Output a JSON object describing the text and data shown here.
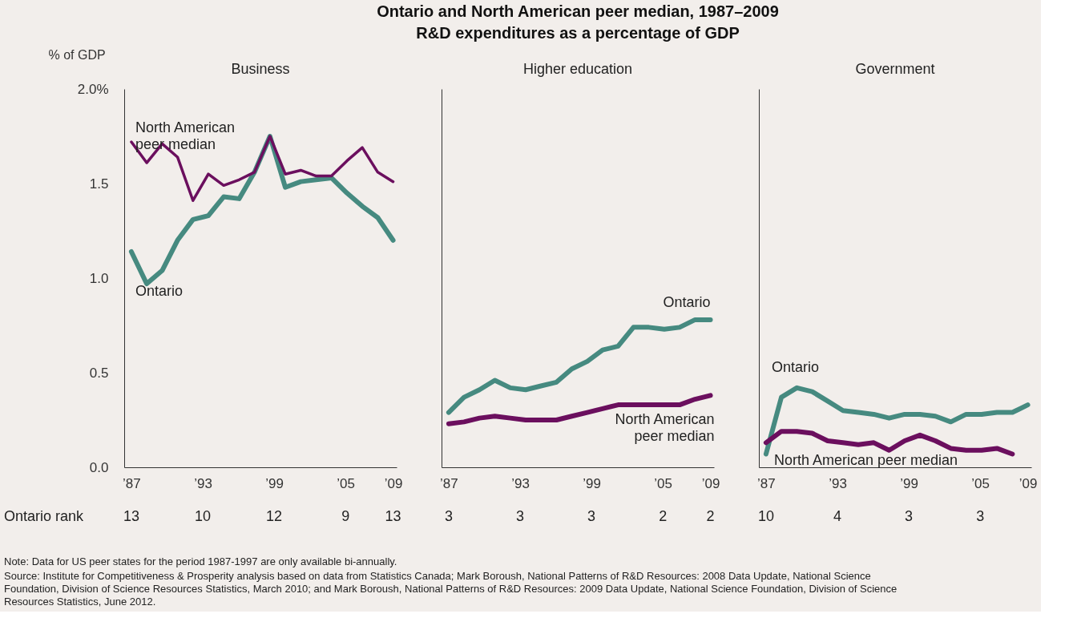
{
  "chart_data": [
    {
      "type": "line",
      "title": "Business",
      "ylabel": "% of GDP",
      "x": [
        1987,
        1988.29,
        1989.59,
        1990.88,
        1992.18,
        1993.47,
        1994.76,
        1996.06,
        1997.35,
        1998.65,
        1999.94,
        2001.24,
        2002.53,
        2003.82,
        2005.12,
        2006.41,
        2007.71,
        2009
      ],
      "series": [
        {
          "name": "North American peer median",
          "color": "#6b0f5e",
          "values": [
            1.72,
            1.61,
            1.71,
            1.64,
            1.41,
            1.55,
            1.49,
            1.52,
            1.56,
            1.75,
            1.55,
            1.57,
            1.54,
            1.54,
            1.62,
            1.69,
            1.56,
            1.51
          ]
        },
        {
          "name": "Ontario",
          "color": "#468a80",
          "values": [
            1.14,
            0.97,
            1.04,
            1.2,
            1.31,
            1.33,
            1.43,
            1.42,
            1.56,
            1.75,
            1.48,
            1.51,
            1.52,
            1.53,
            1.45,
            1.38,
            1.32,
            1.2
          ]
        }
      ],
      "xlim": [
        1986.4,
        2009.3
      ],
      "xticks": [
        {
          "value": 1987,
          "label": "’87"
        },
        {
          "value": 1993,
          "label": "’93"
        },
        {
          "value": 1999,
          "label": "’99"
        },
        {
          "value": 2005,
          "label": "’05"
        },
        {
          "value": 2009,
          "label": "’09"
        }
      ],
      "ylim": [
        0,
        2.0
      ],
      "yticks": [
        {
          "value": 0,
          "label": "0.0"
        },
        0.5,
        {
          "value": 1,
          "label": "1.0"
        },
        1.5,
        {
          "value": 2,
          "label": "2.0%"
        }
      ],
      "marker": "none",
      "line_style": "solid",
      "annotations": [
        "Ontario and North American peer median, 1987–2009",
        "R&D expenditures as a percentage of GDP",
        "Ontario rank",
        "Note: Data for US peer states for the period 1987-1997 are only available bi-annually.",
        "Source: Institute for Competitiveness & Prosperity analysis based on data from Statistics Canada; Mark Boroush, National Patterns of R&D Resources: 2008 Data Update, National Science Foundation, Division of Science Resources Statistics, March 2010; and Mark Boroush, National Patterns of R&D Resources: 2009 Data Update, National Science Foundation, Division of Science Resources Statistics, June 2012.",
        "13",
        "10",
        "12",
        "9",
        "13"
      ]
    },
    {
      "type": "line",
      "title": "Higher education",
      "x": [
        1987,
        1988.29,
        1989.59,
        1990.88,
        1992.18,
        1993.47,
        1994.76,
        1996.06,
        1997.35,
        1998.65,
        1999.94,
        2001.24,
        2002.53,
        2003.82,
        2005.12,
        2006.41,
        2007.71,
        2009
      ],
      "series": [
        {
          "name": "Ontario",
          "color": "#468a80",
          "values": [
            0.29,
            0.37,
            0.41,
            0.46,
            0.42,
            0.41,
            0.43,
            0.45,
            0.52,
            0.56,
            0.62,
            0.64,
            0.74,
            0.74,
            0.73,
            0.74,
            0.78,
            0.78
          ]
        },
        {
          "name": "North American peer median",
          "color": "#6b0f5e",
          "values": [
            0.23,
            0.24,
            0.26,
            0.27,
            0.26,
            0.25,
            0.25,
            0.25,
            0.27,
            0.29,
            0.31,
            0.33,
            0.33,
            0.33,
            0.33,
            0.33,
            0.36,
            0.38
          ]
        }
      ],
      "xlim": [
        1986.4,
        2009.3
      ],
      "xticks": [
        {
          "value": 1987,
          "label": "’87"
        },
        {
          "value": 1993,
          "label": "’93"
        },
        {
          "value": 1999,
          "label": "’99"
        },
        {
          "value": 2005,
          "label": "’05"
        },
        {
          "value": 2009,
          "label": "’09"
        }
      ],
      "ylim": [
        0,
        2.0
      ],
      "tick_labels": "x",
      "marker": "none",
      "line_style": "solid",
      "annotations": [
        "3",
        "3",
        "3",
        "2",
        "2"
      ]
    },
    {
      "type": "line",
      "title": "Government",
      "x": [
        1987,
        1988.29,
        1989.59,
        1990.88,
        1992.18,
        1993.47,
        1994.76,
        1996.06,
        1997.35,
        1998.65,
        1999.94,
        2001.24,
        2002.53,
        2003.82,
        2005.12,
        2006.41,
        2007.71,
        2009
      ],
      "series": [
        {
          "name": "Ontario",
          "color": "#468a80",
          "values": [
            0.07,
            0.37,
            0.42,
            0.4,
            0.35,
            0.3,
            0.29,
            0.28,
            0.26,
            0.28,
            0.28,
            0.27,
            0.24,
            0.28,
            0.28,
            0.29,
            0.29,
            0.33
          ]
        },
        {
          "name": "North American peer median",
          "color": "#6b0f5e",
          "values": [
            0.13,
            0.19,
            0.19,
            0.18,
            0.14,
            0.13,
            0.12,
            0.13,
            0.09,
            0.14,
            0.17,
            0.14,
            0.1,
            0.09,
            0.09,
            0.1,
            0.07,
            null
          ]
        }
      ],
      "xlim": [
        1986.4,
        2009.3
      ],
      "xticks": [
        {
          "value": 1987,
          "label": "’87"
        },
        {
          "value": 1993,
          "label": "’93"
        },
        {
          "value": 1999,
          "label": "’99"
        },
        {
          "value": 2005,
          "label": "’05"
        },
        {
          "value": 2009,
          "label": "’09"
        }
      ],
      "ylim": [
        0,
        2.0
      ],
      "tick_labels": "x",
      "marker": "none",
      "line_style": "solid",
      "annotations": [
        "10",
        "4",
        "3",
        "3"
      ]
    }
  ]
}
